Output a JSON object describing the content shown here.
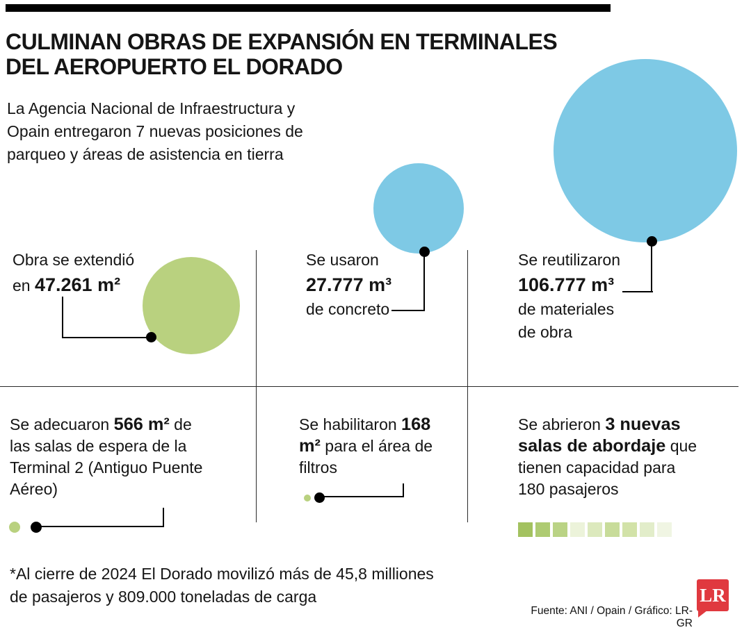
{
  "header": {
    "title_line1": "CULMINAN OBRAS DE EXPANSIÓN EN TERMINALES",
    "title_line2": "DEL AEROPUERTO EL DORADO",
    "intro": "La Agencia Nacional de Infraestructura y Opain entregaron 7 nuevas posiciones de parqueo y áreas de asistencia en tierra"
  },
  "bubbles": {
    "b1": {
      "line1": "Obra se extendió",
      "line2_pre": "en ",
      "line2_bold": "47.261 m²"
    },
    "b2": {
      "line1": "Se usaron",
      "line2_bold": "27.777 m³",
      "line3": "de concreto"
    },
    "b3": {
      "line1": "Se reutilizaron",
      "line2_bold": "106.777 m³",
      "line3": "de materiales",
      "line4": "de obra"
    }
  },
  "facts": {
    "f1": {
      "pre": "Se adecuaron ",
      "bold": "566 m²",
      "post": " de las salas de espera de la Terminal 2 (Antiguo Puente Aéreo)"
    },
    "f2": {
      "pre": "Se habilitaron ",
      "bold": "168 m²",
      "post": " para el área de filtros"
    },
    "f3": {
      "pre": "Se abrieron ",
      "bold": "3 nuevas salas de abordaje",
      "post": " que tienen capacidad para 180 pasajeros",
      "squares": [
        "#a3c260",
        "#aecb72",
        "#bad385",
        "#ecf3da",
        "#dce9bd",
        "#c8dc9a",
        "#d2e2a8",
        "#e2edca",
        "#f0f5e3"
      ]
    }
  },
  "footer": {
    "note": "*Al cierre de 2024 El Dorado movilizó más de 45,8 milliones de pasajeros y 809.000 toneladas de carga",
    "source": "Fuente: ANI / Opain / Gráfico: LR-GR",
    "logo": "LR"
  },
  "colors": {
    "green": "#b9d17f",
    "blue": "#7ec9e5",
    "red": "#e0393f",
    "black": "#000000"
  },
  "chart_data": {
    "type": "bubble",
    "title": "Culminan obras de expansión en terminales del aeropuerto El Dorado",
    "bubbles": [
      {
        "label": "Obra se extendió en",
        "value": 47261,
        "unit": "m²",
        "color": "#b9d17f"
      },
      {
        "label": "Se usaron de concreto",
        "value": 27777,
        "unit": "m³",
        "color": "#7ec9e5"
      },
      {
        "label": "Se reutilizaron de materiales de obra",
        "value": 106777,
        "unit": "m³",
        "color": "#7ec9e5"
      }
    ],
    "facts": [
      {
        "label": "Salas de espera adecuadas de la Terminal 2 (Antiguo Puente Aéreo)",
        "value": 566,
        "unit": "m²"
      },
      {
        "label": "Habilitados para el área de filtros",
        "value": 168,
        "unit": "m²"
      },
      {
        "label": "Nuevas salas de abordaje con capacidad para 180 pasajeros",
        "value": 3,
        "unit": "salas"
      }
    ],
    "legend_position": "none",
    "grid": false
  }
}
